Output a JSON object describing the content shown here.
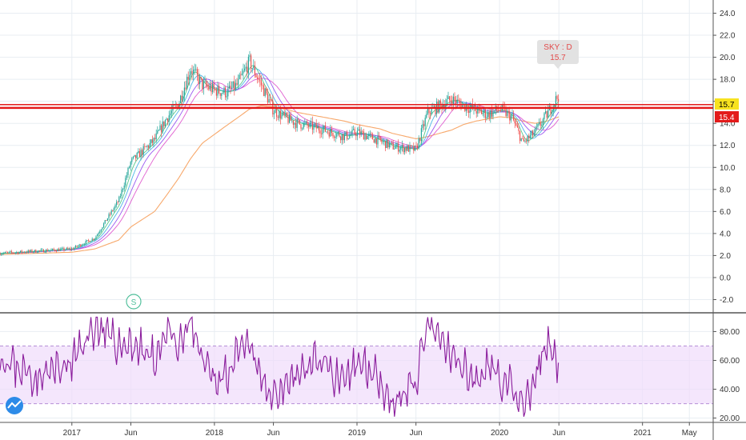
{
  "chart_data": [
    {
      "type": "candlestick",
      "symbol_label": "SKY : D",
      "last_value_label": "15.7",
      "price_badge": "15.7",
      "level_badge": "15.4",
      "horizontal_levels": [
        15.4,
        15.7
      ],
      "ylim": [
        -3.2,
        25.2
      ],
      "y_ticks": [
        "-2.0",
        "0.0",
        "2.0",
        "4.0",
        "6.0",
        "8.0",
        "10.0",
        "12.0",
        "14.0",
        "16.0",
        "18.0",
        "20.0",
        "22.0",
        "24.0"
      ],
      "x_ticks": [
        "2017",
        "Jun",
        "2018",
        "Jun",
        "2019",
        "Jun",
        "2020",
        "Jun",
        "2021",
        "May"
      ],
      "close_series": {
        "x": [
          "2016-07",
          "2016-10",
          "2017-01",
          "2017-03",
          "2017-05",
          "2017-06",
          "2017-08",
          "2017-09",
          "2017-10",
          "2017-11",
          "2017-12",
          "2018-01",
          "2018-02",
          "2018-03",
          "2018-04",
          "2018-05",
          "2018-06",
          "2018-07",
          "2018-08",
          "2018-10",
          "2018-12",
          "2019-01",
          "2019-03",
          "2019-04",
          "2019-06",
          "2019-07",
          "2019-09",
          "2019-10",
          "2019-11",
          "2019-12",
          "2020-01",
          "2020-02",
          "2020-03",
          "2020-04",
          "2020-05",
          "2020-06"
        ],
        "values": [
          2.2,
          2.4,
          2.6,
          3.6,
          7.0,
          10.5,
          12.5,
          14.5,
          15.8,
          19.0,
          17.5,
          17.0,
          16.8,
          17.5,
          19.6,
          17.5,
          15.2,
          14.5,
          14.0,
          13.5,
          12.8,
          13.2,
          12.4,
          11.9,
          11.6,
          15.0,
          16.2,
          15.6,
          15.2,
          14.8,
          15.3,
          14.6,
          12.2,
          13.2,
          14.8,
          16.6
        ]
      },
      "moving_averages": [
        {
          "color": "#f7a86b",
          "values": [
            2.1,
            2.2,
            2.3,
            2.6,
            3.4,
            4.6,
            6.0,
            7.5,
            9.0,
            10.8,
            12.2,
            13.0,
            13.8,
            14.5,
            15.3,
            15.6,
            15.5,
            15.3,
            15.0,
            14.6,
            14.2,
            13.9,
            13.5,
            13.1,
            12.6,
            12.8,
            13.4,
            13.9,
            14.2,
            14.4,
            14.6,
            14.5,
            14.2,
            14.0,
            14.2,
            14.6
          ]
        }
      ]
    },
    {
      "type": "line",
      "indicator": "RSI",
      "ylim": [
        17,
        93
      ],
      "y_ticks": [
        "20.00",
        "40.00",
        "60.00",
        "80.00"
      ],
      "band": [
        30,
        70
      ],
      "x": [
        "2016-07",
        "2016-10",
        "2017-01",
        "2017-03",
        "2017-05",
        "2017-06",
        "2017-08",
        "2017-09",
        "2017-10",
        "2017-11",
        "2017-12",
        "2018-01",
        "2018-02",
        "2018-03",
        "2018-04",
        "2018-05",
        "2018-06",
        "2018-07",
        "2018-08",
        "2018-10",
        "2018-12",
        "2019-01",
        "2019-03",
        "2019-04",
        "2019-06",
        "2019-07",
        "2019-09",
        "2019-10",
        "2019-11",
        "2019-12",
        "2020-01",
        "2020-02",
        "2020-03",
        "2020-04",
        "2020-05",
        "2020-06"
      ],
      "values": [
        62,
        48,
        58,
        85,
        70,
        72,
        60,
        82,
        66,
        88,
        58,
        45,
        52,
        62,
        70,
        45,
        35,
        45,
        50,
        62,
        40,
        60,
        48,
        30,
        45,
        85,
        62,
        58,
        42,
        60,
        48,
        40,
        28,
        45,
        72,
        58
      ]
    }
  ]
}
